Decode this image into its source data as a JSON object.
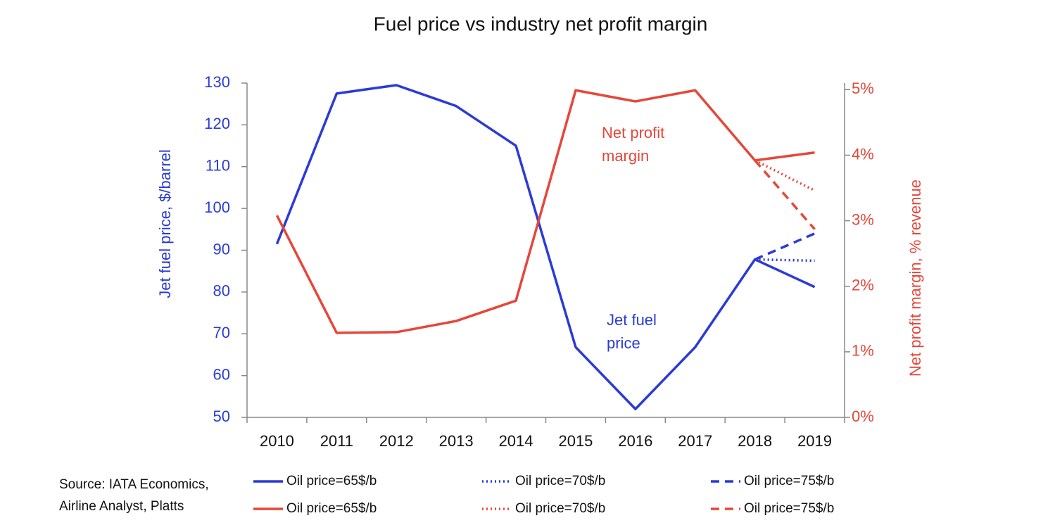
{
  "chart_data": {
    "type": "line",
    "title": "Fuel price vs industry net profit margin",
    "y_label": "Jet fuel price, $/barrel",
    "y2_label": "Net profit margin, % revenue",
    "source": [
      "Source: IATA Economics,",
      "Airline Analyst, Platts"
    ],
    "annotations": [
      {
        "lines": [
          "Net profit",
          "margin"
        ],
        "color": "#e5473a"
      },
      {
        "lines": [
          "Jet fuel",
          "price"
        ],
        "color": "#2a3bd6"
      }
    ],
    "categories": [
      "2010",
      "2011",
      "2012",
      "2013",
      "2014",
      "2015",
      "2016",
      "2017",
      "2018",
      "2019"
    ],
    "ylim": [
      50,
      130
    ],
    "yticks": [
      50,
      60,
      70,
      80,
      90,
      100,
      110,
      120,
      130
    ],
    "ycolor": "#2a3bd6",
    "y2lim": [
      0,
      5.1
    ],
    "y2ticks": [
      {
        "value": 0,
        "label": "0%"
      },
      {
        "value": 1,
        "label": "1%"
      },
      {
        "value": 2,
        "label": "2%"
      },
      {
        "value": 3,
        "label": "3%"
      },
      {
        "value": 4,
        "label": "4%"
      },
      {
        "value": 5,
        "label": "5%"
      }
    ],
    "y2color": "#e5473a",
    "series": [
      {
        "name": "Oil price=65$/b",
        "color": "#2a3bd6",
        "dash": "solid",
        "values": [
          91.5,
          127.5,
          129.5,
          124.5,
          115,
          66.8,
          52,
          66.8,
          87.8,
          81.2
        ]
      },
      {
        "name": "Oil price=70$/b",
        "color": "#2a3bd6",
        "dash": "dotted",
        "values": [
          null,
          null,
          null,
          null,
          null,
          null,
          null,
          null,
          87.8,
          87.5
        ]
      },
      {
        "name": "Oil price=75$/b",
        "color": "#2a3bd6",
        "dash": "dashed",
        "values": [
          null,
          null,
          null,
          null,
          null,
          null,
          null,
          null,
          87.8,
          94
        ]
      },
      {
        "name": "Oil price=65$/b",
        "color": "#e5473a",
        "dash": "solid",
        "axis": "y2",
        "values": [
          3.08,
          1.29,
          1.3,
          1.47,
          1.78,
          4.99,
          4.82,
          4.99,
          3.92,
          4.04
        ]
      },
      {
        "name": "Oil price=70$/b",
        "color": "#e5473a",
        "dash": "dotted",
        "axis": "y2",
        "values": [
          null,
          null,
          null,
          null,
          null,
          null,
          null,
          null,
          3.92,
          3.46
        ]
      },
      {
        "name": "Oil price=75$/b",
        "color": "#e5473a",
        "dash": "dashed",
        "axis": "y2",
        "values": [
          null,
          null,
          null,
          null,
          null,
          null,
          null,
          null,
          3.92,
          2.87
        ]
      }
    ]
  }
}
